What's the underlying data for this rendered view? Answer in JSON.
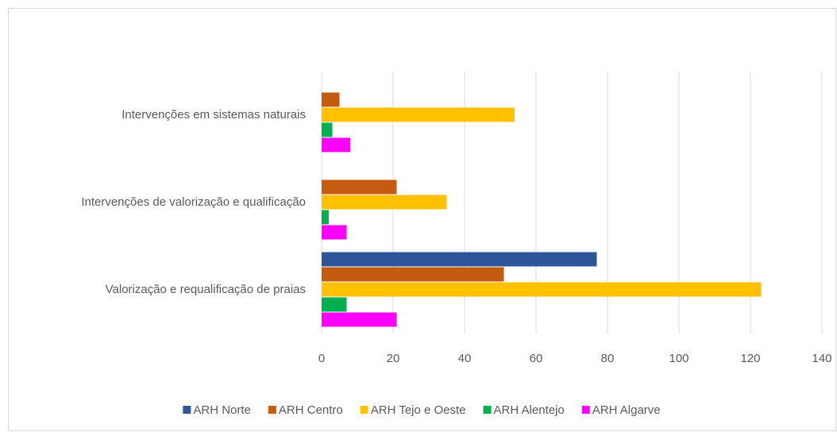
{
  "chart_data": {
    "type": "barh",
    "categories": [
      "Intervenções em sistemas naturais",
      "Intervenções de valorização e qualificação",
      "Valorização e requalificação de praias"
    ],
    "series": [
      {
        "name": "ARH Norte",
        "color": "#2e5597",
        "values": [
          0,
          0,
          77
        ]
      },
      {
        "name": "ARH Centro",
        "color": "#c55a11",
        "values": [
          5,
          21,
          51
        ]
      },
      {
        "name": "ARH Tejo e Oeste",
        "color": "#ffc000",
        "values": [
          54,
          35,
          123
        ]
      },
      {
        "name": "ARH Alentejo",
        "color": "#00b050",
        "values": [
          3,
          2,
          7
        ]
      },
      {
        "name": "ARH Algarve",
        "color": "#ff00ff",
        "values": [
          8,
          7,
          21
        ]
      }
    ],
    "xlim": [
      0,
      140
    ],
    "xticks": [
      0,
      20,
      40,
      60,
      80,
      100,
      120,
      140
    ],
    "grid": true,
    "legend": "bottom"
  }
}
